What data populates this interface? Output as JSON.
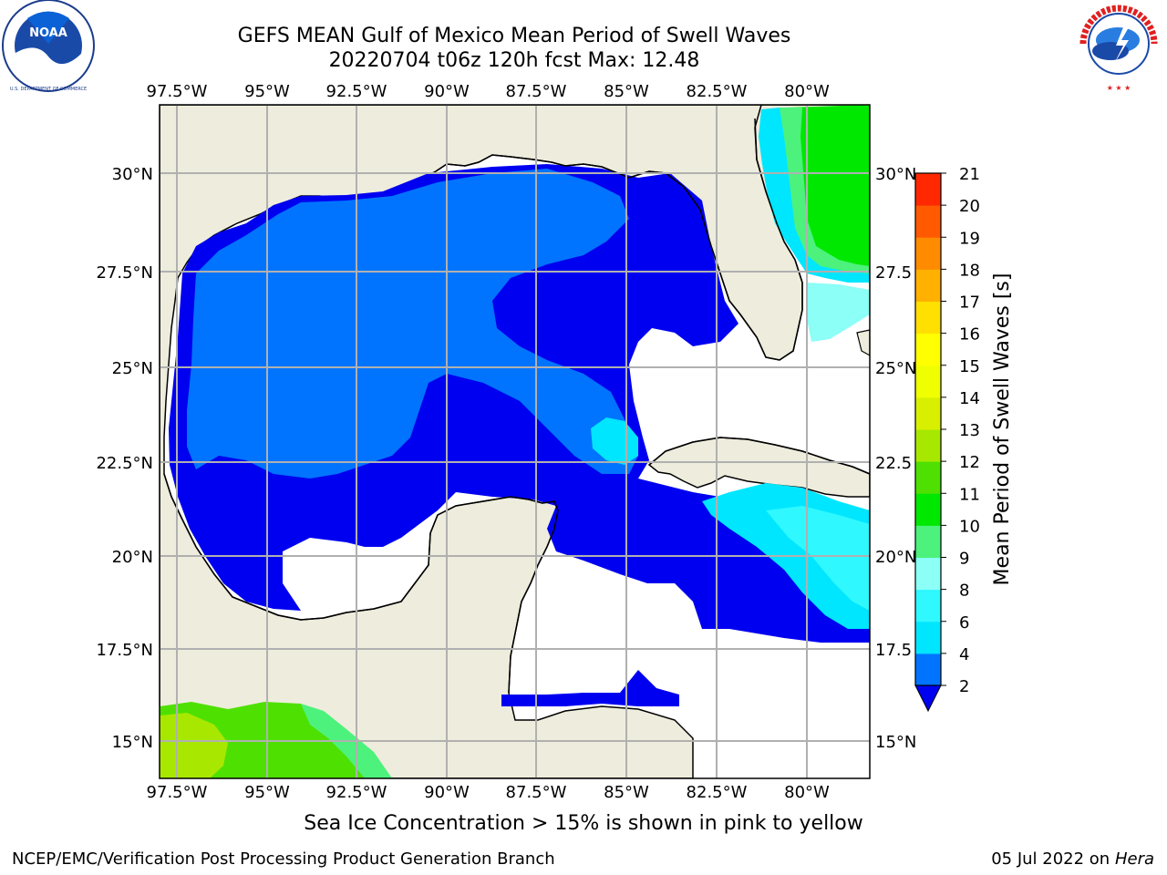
{
  "header": {
    "title_line1": "GEFS MEAN Gulf of Mexico Mean Period of Swell Waves",
    "title_line2": "20220704 t06z 120h fcst   Max: 12.48"
  },
  "logos": {
    "left": {
      "name": "NOAA",
      "ring_text": "NATIONAL OCEANIC AND ATMOSPHERIC ADMINISTRATION",
      "bottom_text": "U.S. DEPARTMENT OF COMMERCE"
    },
    "right": {
      "ring_text": "NATIONAL WEATHER SERVICE"
    }
  },
  "map": {
    "lon_labels": [
      "97.5°W",
      "95°W",
      "92.5°W",
      "90°W",
      "87.5°W",
      "85°W",
      "82.5°W",
      "80°W"
    ],
    "lat_labels_left": [
      "30°N",
      "27.5°N",
      "25°N",
      "22.5°N",
      "20°N",
      "17.5°N",
      "15°N"
    ],
    "lat_labels_right": [
      "30°N",
      "27.5",
      "25°N",
      "22.5",
      "20°N",
      "17.5",
      "15°N"
    ],
    "colors": {
      "land": "#eeecdc",
      "ocean_nodata": "#ffffff",
      "grid": "#b0b0b0",
      "coast": "#000000"
    }
  },
  "colorbar": {
    "label": "Mean Period of Swell Waves [s]",
    "ticks": [
      "2",
      "4",
      "6",
      "8",
      "9",
      "10",
      "11",
      "12",
      "13",
      "14",
      "15",
      "16",
      "17",
      "18",
      "19",
      "20",
      "21"
    ],
    "colors": [
      "#0074ff",
      "#00e6ff",
      "#2ff8ff",
      "#8cfff6",
      "#4cf27c",
      "#00e800",
      "#4ee000",
      "#a8e800",
      "#d8f000",
      "#f0ff00",
      "#ffff00",
      "#ffe000",
      "#ffb000",
      "#ff8c00",
      "#ff5a00",
      "#ff2800"
    ],
    "under_color": "#0000f0"
  },
  "footnote": "Sea Ice Concentration > 15% is shown in pink to yellow",
  "credits": {
    "left": "NCEP/EMC/Verification Post Processing Product Generation Branch",
    "right_date": "05 Jul 2022 on ",
    "right_host": "Hera"
  }
}
